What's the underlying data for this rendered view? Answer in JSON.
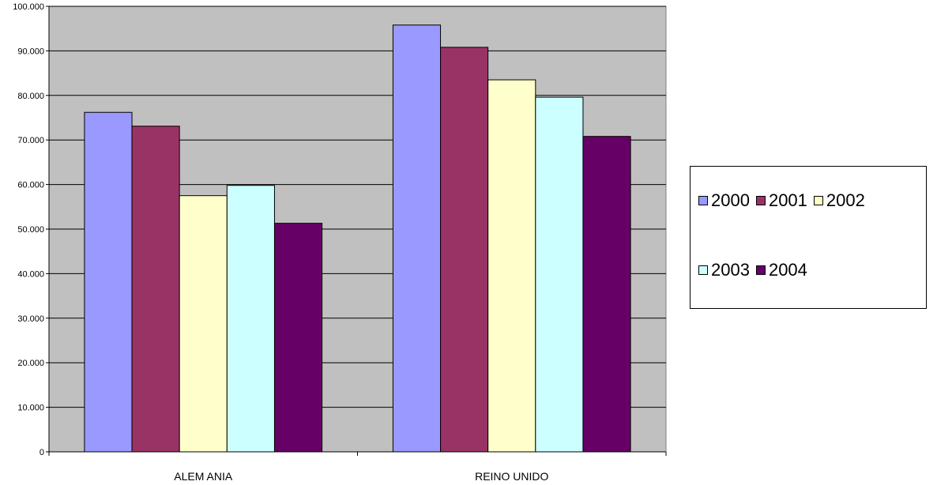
{
  "chart_data": {
    "type": "bar",
    "categories": [
      "ALEM ANIA",
      "REINO UNIDO"
    ],
    "series": [
      {
        "name": "2000",
        "color": "#9999ff",
        "values": [
          76200,
          95800
        ]
      },
      {
        "name": "2001",
        "color": "#993366",
        "values": [
          73100,
          90800
        ]
      },
      {
        "name": "2002",
        "color": "#ffffcc",
        "values": [
          57500,
          83500
        ]
      },
      {
        "name": "2003",
        "color": "#ccffff",
        "values": [
          59800,
          79600
        ]
      },
      {
        "name": "2004",
        "color": "#660066",
        "values": [
          51300,
          70800
        ]
      }
    ],
    "ylim": [
      0,
      100000
    ],
    "yticks": [
      "0",
      "10.000",
      "20.000",
      "30.000",
      "40.000",
      "50.000",
      "60.000",
      "70.000",
      "80.000",
      "90.000",
      "100.000"
    ],
    "plot_background": "#c0c0c0",
    "grid": true,
    "legend_position": "right"
  }
}
